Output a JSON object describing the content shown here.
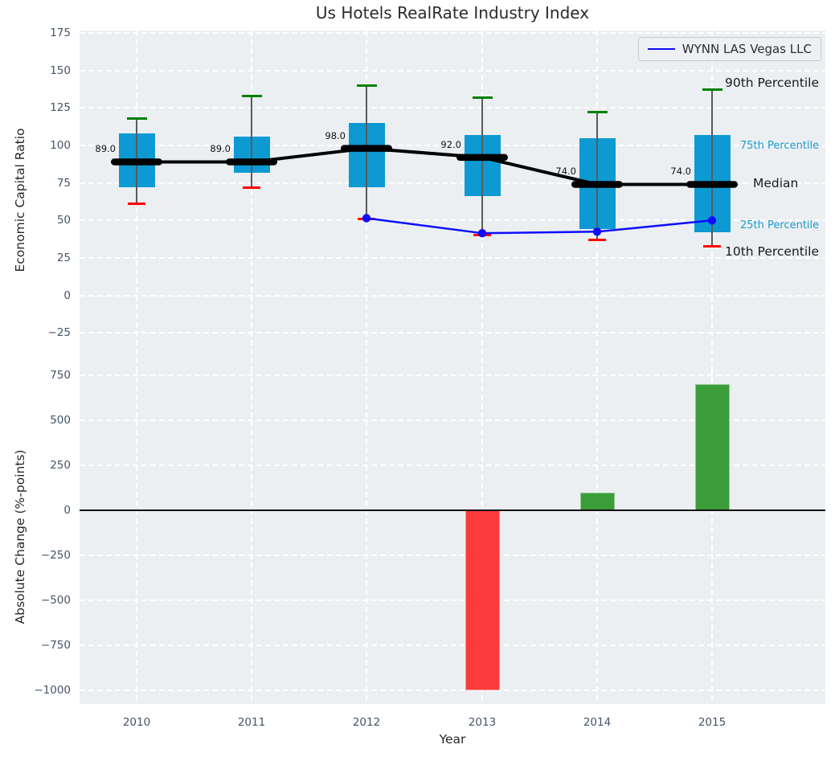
{
  "chart_data": [
    {
      "type": "boxplot+line",
      "title": "Us Hotels RealRate Industry Index",
      "ylabel": "Economic Capital Ratio",
      "ylim": [
        -48,
        176.5
      ],
      "yticks": [
        175,
        150,
        125,
        100,
        75,
        50,
        25,
        0,
        -25
      ],
      "grid": true,
      "categories": [
        2010,
        2011,
        2012,
        2013,
        2014,
        2015
      ],
      "series": [
        {
          "name": "10th Percentile",
          "values": [
            61,
            72,
            51,
            40,
            37,
            33
          ]
        },
        {
          "name": "25th Percentile",
          "values": [
            72,
            82,
            72,
            66,
            44,
            42
          ]
        },
        {
          "name": "Median",
          "values": [
            89,
            89,
            98,
            92,
            74,
            74
          ]
        },
        {
          "name": "75th Percentile",
          "values": [
            108,
            106,
            115,
            107,
            105,
            107
          ]
        },
        {
          "name": "90th Percentile",
          "values": [
            118,
            133,
            140,
            132,
            122,
            137
          ]
        },
        {
          "name": "WYNN LAS Vegas LLC",
          "values": [
            null,
            null,
            51.5,
            41.5,
            42.5,
            50
          ]
        }
      ],
      "median_labels": [
        "89.0",
        "89.0",
        "98.0",
        "92.0",
        "74.0",
        "74.0"
      ],
      "legend": [
        "WYNN LAS Vegas LLC"
      ],
      "legend_position": "upper right",
      "annotations": [
        {
          "text": "90th Percentile",
          "color": "#1a1a1a",
          "size": "lg"
        },
        {
          "text": "75th Percentile",
          "color": "#1b9bcd",
          "size": "sm"
        },
        {
          "text": "Median",
          "color": "#1a1a1a",
          "size": "lg"
        },
        {
          "text": "25th Percentile",
          "color": "#1b9bcd",
          "size": "sm"
        },
        {
          "text": "10th Percentile",
          "color": "#1a1a1a",
          "size": "lg"
        }
      ]
    },
    {
      "type": "bar",
      "xlabel": "Year",
      "ylabel": "Absolute Change (%-points)",
      "ylim": [
        -1074,
        791
      ],
      "yticks": [
        750,
        500,
        250,
        0,
        -250,
        -500,
        -750,
        -1000
      ],
      "grid": true,
      "categories": [
        2010,
        2011,
        2012,
        2013,
        2014,
        2015
      ],
      "values": [
        null,
        null,
        null,
        -1000,
        100,
        700
      ],
      "bar_colors": [
        null,
        null,
        null,
        "#fb3b3b",
        "#3a9d3a",
        "#3a9d3a"
      ]
    }
  ],
  "colors": {
    "box_fill": "#0d9ad3",
    "median": "#000000",
    "cap_90th": "#008000",
    "cap_10th": "#ff0000",
    "wynn_line": "#0d0dff",
    "bar_positive": "#3a9d3a",
    "bar_negative": "#fb3b3b",
    "axes_background": "#eceff1",
    "tick_text": "#44546a"
  }
}
